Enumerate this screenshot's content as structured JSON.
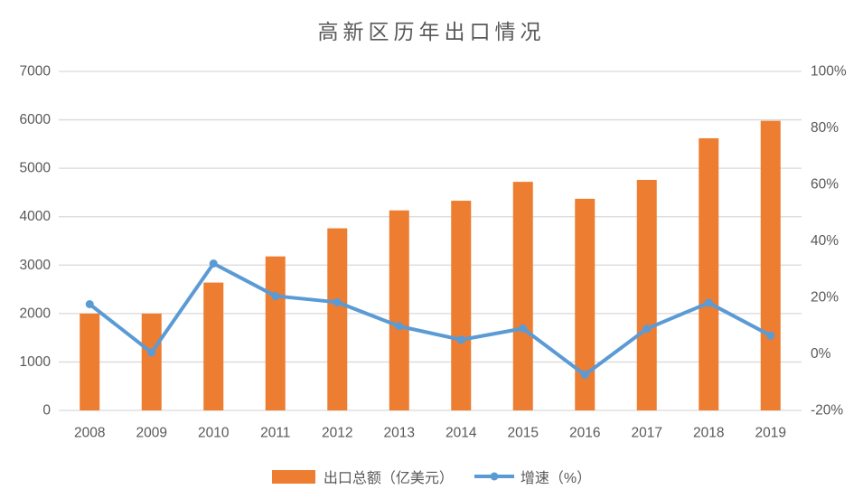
{
  "page": {
    "background": "#ffffff"
  },
  "chart_data": {
    "type": "combo",
    "title": "高新区历年出口情况",
    "categories": [
      "2008",
      "2009",
      "2010",
      "2011",
      "2012",
      "2013",
      "2014",
      "2015",
      "2016",
      "2017",
      "2018",
      "2019"
    ],
    "series": [
      {
        "name": "出口总额（亿美元）",
        "type": "bar",
        "axis": "left",
        "color": "#ED7D31",
        "values": [
          2000,
          2000,
          2640,
          3180,
          3760,
          4130,
          4330,
          4720,
          4370,
          4760,
          5620,
          5980
        ]
      },
      {
        "name": "增速（%）",
        "type": "line",
        "axis": "right",
        "color": "#5B9BD5",
        "values": [
          17.6,
          0.5,
          32.0,
          20.5,
          18.3,
          9.8,
          5.0,
          9.0,
          -7.4,
          8.9,
          18.1,
          6.5
        ]
      }
    ],
    "left_axis": {
      "min": 0,
      "max": 7000,
      "step": 1000,
      "tick_labels": [
        "0",
        "1000",
        "2000",
        "3000",
        "4000",
        "5000",
        "6000",
        "7000"
      ]
    },
    "right_axis": {
      "min": -20,
      "max": 100,
      "step": 20,
      "tick_labels": [
        "-20%",
        "0%",
        "20%",
        "40%",
        "60%",
        "80%",
        "100%"
      ]
    },
    "grid": true,
    "legend_position": "bottom",
    "colors": {
      "grid_line": "#D9D9D9",
      "axis_text": "#595959",
      "title_text": "#595959",
      "background": "#ffffff"
    }
  }
}
